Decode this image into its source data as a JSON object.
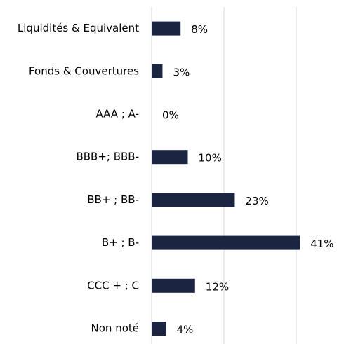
{
  "chart_data": {
    "type": "barh",
    "categories": [
      "Liquidités & Equivalent",
      "Fonds & Couvertures",
      "AAA ; A-",
      "BBB+; BBB-",
      "BB+ ; BB-",
      "B+ ; B-",
      "CCC + ; C",
      "Non noté"
    ],
    "values": [
      8,
      3,
      0,
      10,
      23,
      41,
      12,
      4
    ],
    "value_labels": [
      "8%",
      "3%",
      "0%",
      "10%",
      "23%",
      "41%",
      "12%",
      "4%"
    ],
    "color": "#1b2440",
    "xlim": [
      0,
      50
    ],
    "xticks": [
      0,
      20,
      40
    ],
    "grid": true
  }
}
